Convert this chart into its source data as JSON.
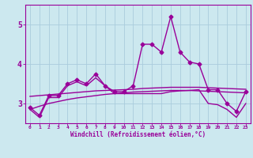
{
  "xlabel": "Windchill (Refroidissement éolien,°C)",
  "hours": [
    0,
    1,
    2,
    3,
    4,
    5,
    6,
    7,
    8,
    9,
    10,
    11,
    12,
    13,
    14,
    15,
    16,
    17,
    18,
    19,
    20,
    21,
    22,
    23
  ],
  "line_main": [
    2.9,
    2.7,
    3.2,
    3.2,
    3.5,
    3.6,
    3.5,
    3.75,
    3.45,
    3.3,
    3.3,
    3.45,
    4.5,
    4.5,
    4.3,
    5.2,
    4.3,
    4.05,
    4.0,
    3.35,
    3.35,
    3.0,
    2.8,
    3.3
  ],
  "line_min": [
    2.85,
    2.65,
    3.15,
    3.15,
    3.45,
    3.55,
    3.45,
    3.65,
    3.45,
    3.25,
    3.25,
    3.25,
    3.25,
    3.25,
    3.25,
    3.3,
    3.32,
    3.33,
    3.35,
    3.0,
    2.97,
    2.85,
    2.65,
    3.0
  ],
  "line_trend_low": [
    2.85,
    2.93,
    3.0,
    3.05,
    3.1,
    3.14,
    3.17,
    3.2,
    3.23,
    3.25,
    3.27,
    3.29,
    3.3,
    3.31,
    3.32,
    3.33,
    3.33,
    3.33,
    3.32,
    3.31,
    3.3,
    3.29,
    3.28,
    3.27
  ],
  "line_trend_high": [
    3.18,
    3.2,
    3.22,
    3.24,
    3.26,
    3.28,
    3.3,
    3.32,
    3.33,
    3.34,
    3.35,
    3.36,
    3.38,
    3.39,
    3.4,
    3.41,
    3.41,
    3.41,
    3.41,
    3.4,
    3.39,
    3.38,
    3.37,
    3.36
  ],
  "bg_color": "#cce8ef",
  "grid_color": "#aaccdd",
  "line_color": "#990099",
  "ylim": [
    2.5,
    5.5
  ],
  "yticks": [
    3,
    4,
    5
  ],
  "marker": "D",
  "markersize": 2.5,
  "linewidth": 1.0
}
